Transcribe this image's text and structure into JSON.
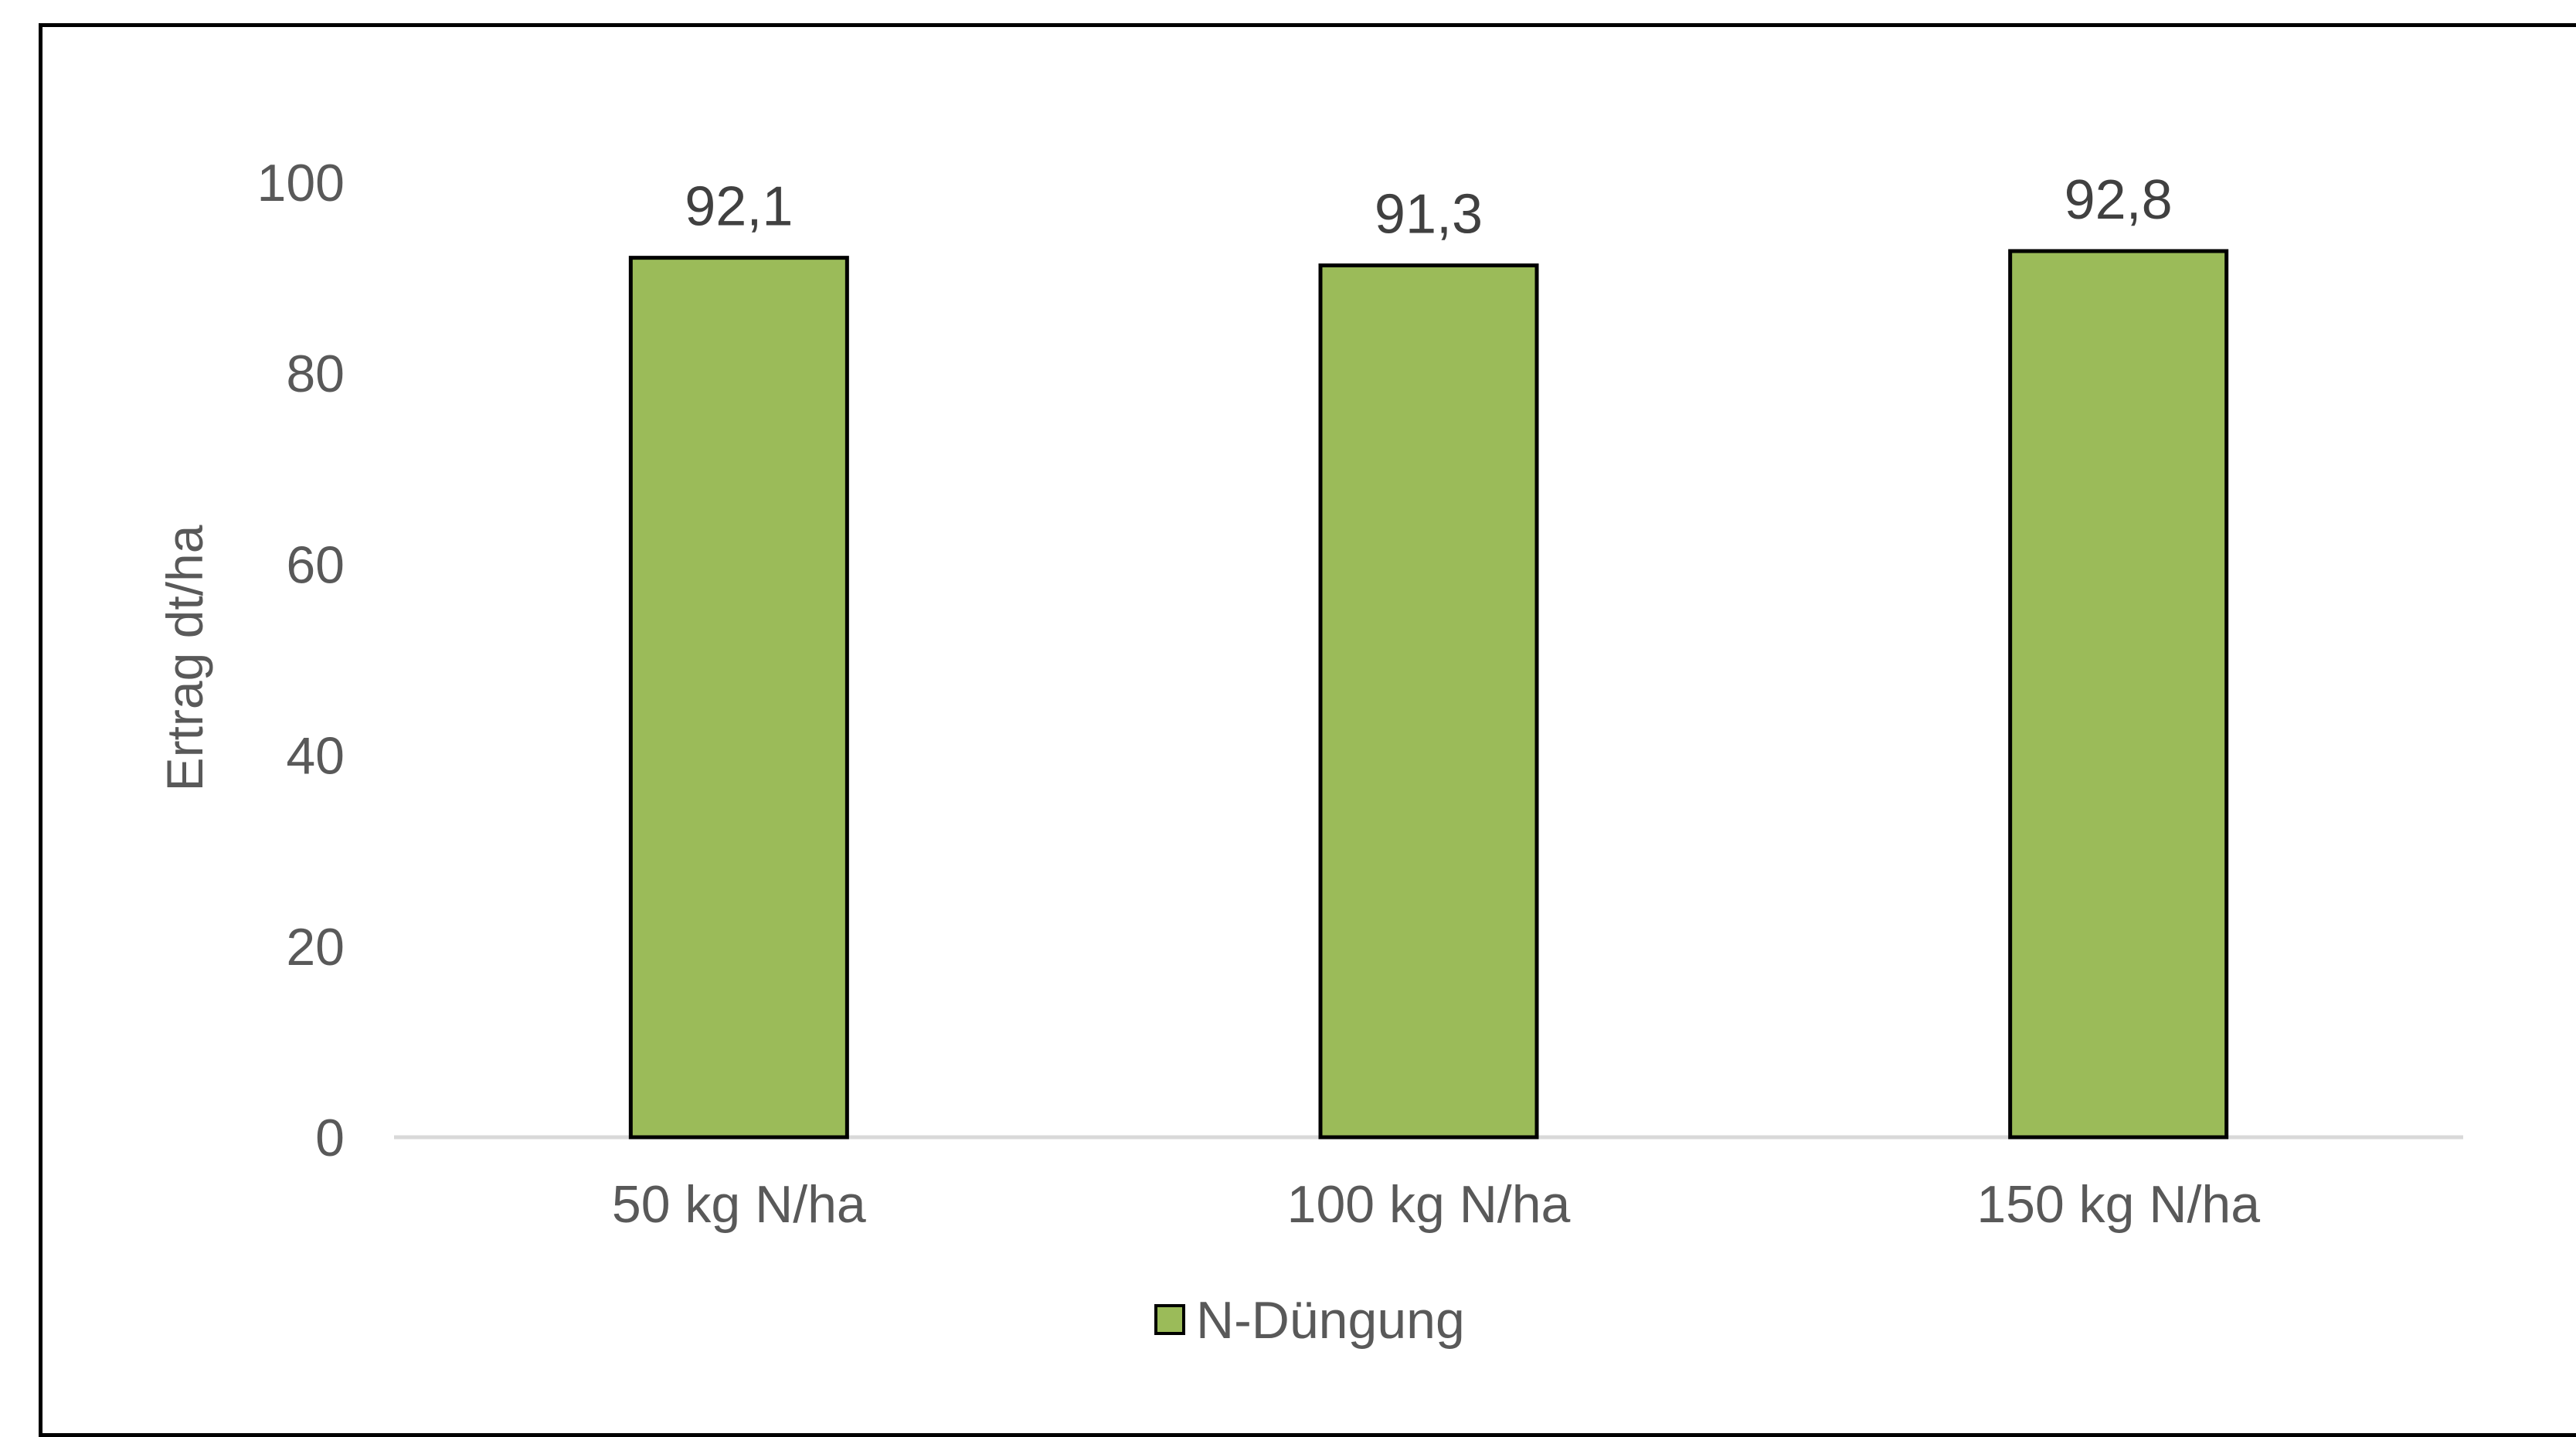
{
  "chart_data": {
    "type": "bar",
    "categories": [
      "50 kg N/ha",
      "100 kg N/ha",
      "150 kg N/ha"
    ],
    "series": [
      {
        "name": "N-Düngung",
        "values": [
          92.1,
          91.3,
          92.8
        ],
        "labels": [
          "92,1",
          "91,3",
          "92,8"
        ],
        "color": "#9bbb59"
      }
    ],
    "ylabel": "Ertrag dt/ha",
    "xlabel": "",
    "title": "",
    "ylim": [
      0,
      100
    ],
    "yticks": [
      0,
      20,
      40,
      60,
      80,
      100
    ],
    "grid": false,
    "legend_position": "bottom"
  },
  "colors": {
    "bar_fill": "#9bbb59",
    "bar_stroke": "#000000",
    "axis_line": "#d9d9d9",
    "text": "#595959"
  }
}
